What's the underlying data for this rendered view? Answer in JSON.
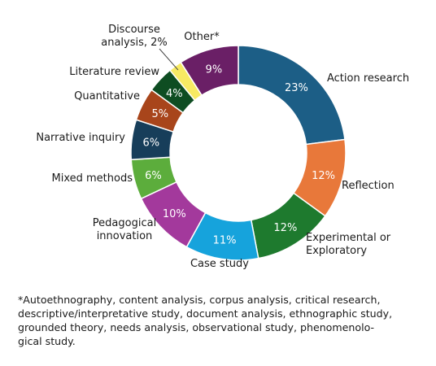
{
  "chart_data": {
    "type": "pie",
    "title": "",
    "slices": [
      {
        "label_lines": [
          "Action research"
        ],
        "value": 23,
        "pct_text": "23%",
        "color": "#1c5e86"
      },
      {
        "label_lines": [
          "Reflection"
        ],
        "value": 12,
        "pct_text": "12%",
        "color": "#e8783a"
      },
      {
        "label_lines": [
          "Experimental or",
          "Exploratory"
        ],
        "value": 12,
        "pct_text": "12%",
        "color": "#1e7a2e"
      },
      {
        "label_lines": [
          "Case study"
        ],
        "value": 11,
        "pct_text": "11%",
        "color": "#16a3dc"
      },
      {
        "label_lines": [
          "Pedagogical",
          "innovation"
        ],
        "value": 10,
        "pct_text": "10%",
        "color": "#a3399c"
      },
      {
        "label_lines": [
          "Mixed methods"
        ],
        "value": 6,
        "pct_text": "6%",
        "color": "#5cad3c"
      },
      {
        "label_lines": [
          "Narrative inquiry"
        ],
        "value": 6,
        "pct_text": "6%",
        "color": "#173e5a"
      },
      {
        "label_lines": [
          "Quantitative"
        ],
        "value": 5,
        "pct_text": "5%",
        "color": "#a8451b"
      },
      {
        "label_lines": [
          "Literature review"
        ],
        "value": 4,
        "pct_text": "4%",
        "color": "#0e4d22"
      },
      {
        "label_lines": [
          "Discourse",
          "analysis, 2%"
        ],
        "value": 2,
        "pct_text": "",
        "color": "#f7ea63"
      },
      {
        "label_lines": [
          "Other*"
        ],
        "value": 9,
        "pct_text": "9%",
        "color": "#6a1f66"
      }
    ]
  },
  "footnote": {
    "lines": [
      "*Autoethnography, content analysis, corpus analysis, critical research,",
      "descriptive/interpretative study, document analysis, ethnographic study,",
      "grounded theory, needs analysis, observational study, phenomenolo-",
      "gical study."
    ]
  }
}
